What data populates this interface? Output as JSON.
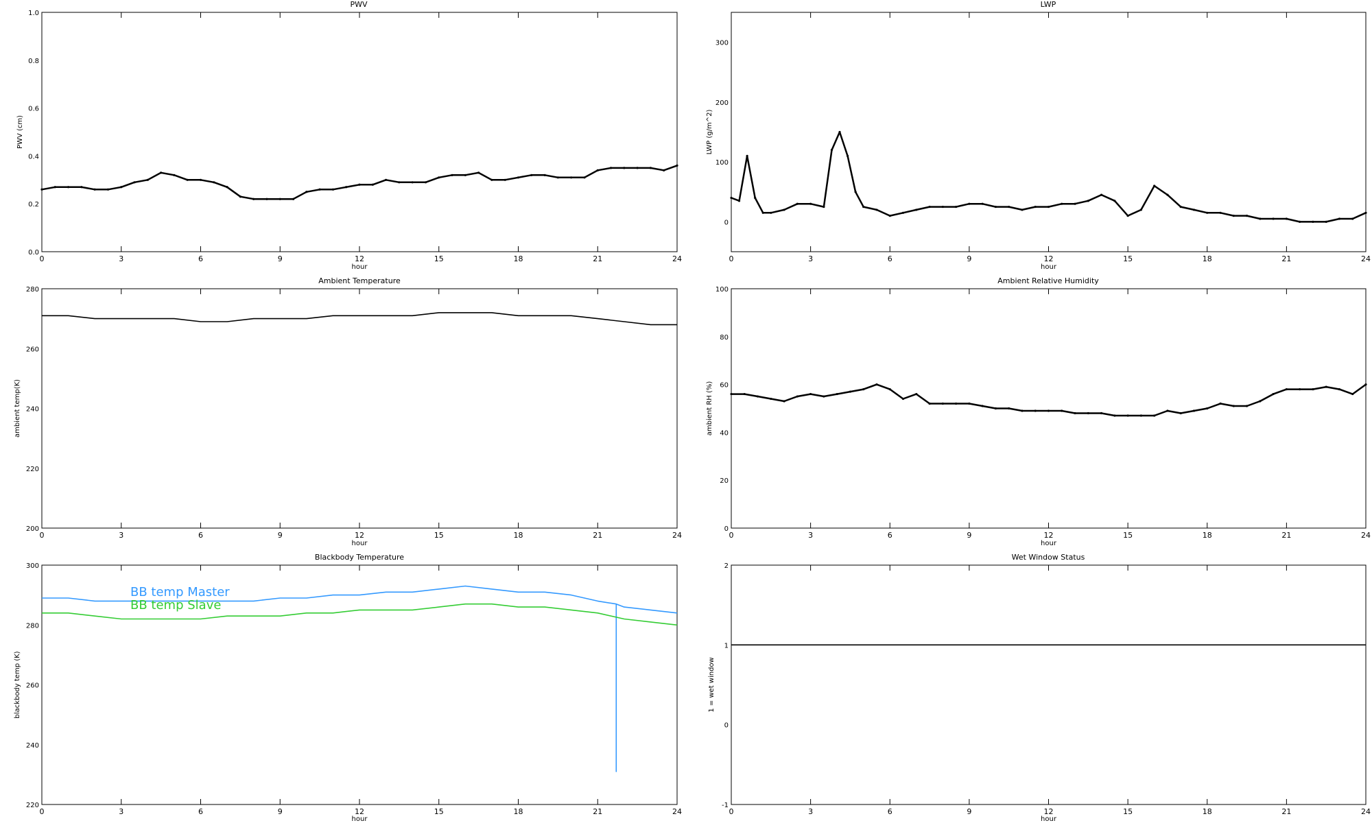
{
  "figure": {
    "panels": [
      {
        "id": "pwv",
        "title": "PWV",
        "xlabel": "hour",
        "ylabel": "PWV (cm)",
        "xticks": [
          "0",
          "3",
          "6",
          "9",
          "12",
          "15",
          "18",
          "21",
          "24"
        ],
        "yticks": [
          "0.0",
          "0.2",
          "0.4",
          "0.6",
          "0.8",
          "1.0"
        ]
      },
      {
        "id": "lwp",
        "title": "LWP",
        "xlabel": "hour",
        "ylabel": "LWP (g/m^2)",
        "xticks": [
          "0",
          "3",
          "6",
          "9",
          "12",
          "15",
          "18",
          "21",
          "24"
        ],
        "yticks": [
          "0",
          "100",
          "200",
          "300"
        ]
      },
      {
        "id": "ambient-temp",
        "title": "Ambient Temperature",
        "xlabel": "hour",
        "ylabel": "ambient temp(K)",
        "xticks": [
          "0",
          "3",
          "6",
          "9",
          "12",
          "15",
          "18",
          "21",
          "24"
        ],
        "yticks": [
          "200",
          "220",
          "240",
          "260",
          "280"
        ]
      },
      {
        "id": "ambient-rh",
        "title": "Ambient Relative Humidity",
        "xlabel": "hour",
        "ylabel": "ambient RH (%)",
        "xticks": [
          "0",
          "3",
          "6",
          "9",
          "12",
          "15",
          "18",
          "21",
          "24"
        ],
        "yticks": [
          "0",
          "20",
          "40",
          "60",
          "80",
          "100"
        ]
      },
      {
        "id": "blackbody-temp",
        "title": "Blackbody Temperature",
        "xlabel": "hour",
        "ylabel": "blackbody temp (K)",
        "xticks": [
          "0",
          "3",
          "6",
          "9",
          "12",
          "15",
          "18",
          "21",
          "24"
        ],
        "yticks": [
          "220",
          "240",
          "260",
          "280",
          "300"
        ],
        "legend": [
          "BB temp Master",
          "BB temp Slave"
        ]
      },
      {
        "id": "wet-window",
        "title": "Wet Window Status",
        "xlabel": "hour",
        "ylabel": "1 = wet window",
        "xticks": [
          "0",
          "3",
          "6",
          "9",
          "12",
          "15",
          "18",
          "21",
          "24"
        ],
        "yticks": [
          "-1",
          "0",
          "1",
          "2"
        ]
      }
    ]
  },
  "chart_data": [
    {
      "type": "scatter",
      "title": "PWV",
      "xlabel": "hour",
      "ylabel": "PWV (cm)",
      "xlim": [
        0,
        24
      ],
      "ylim": [
        0,
        1
      ],
      "series": [
        {
          "x": [
            0,
            0.5,
            1,
            1.5,
            2,
            2.5,
            3,
            3.5,
            4,
            4.5,
            5,
            5.5,
            6,
            6.5,
            7,
            7.5,
            8,
            8.5,
            9,
            9.5,
            10,
            10.5,
            11,
            11.5,
            12,
            12.5,
            13,
            13.5,
            14,
            14.5,
            15,
            15.5,
            16,
            16.5,
            17,
            17.5,
            18,
            18.5,
            19,
            19.5,
            20,
            20.5,
            21,
            21.5,
            22,
            22.5,
            23,
            23.5,
            24
          ],
          "y": [
            0.26,
            0.27,
            0.27,
            0.27,
            0.26,
            0.26,
            0.27,
            0.29,
            0.3,
            0.33,
            0.32,
            0.3,
            0.3,
            0.29,
            0.27,
            0.23,
            0.22,
            0.22,
            0.22,
            0.22,
            0.25,
            0.26,
            0.26,
            0.27,
            0.28,
            0.28,
            0.3,
            0.29,
            0.29,
            0.29,
            0.31,
            0.32,
            0.32,
            0.33,
            0.3,
            0.3,
            0.31,
            0.32,
            0.32,
            0.31,
            0.31,
            0.31,
            0.34,
            0.35,
            0.35,
            0.35,
            0.35,
            0.34,
            0.36
          ]
        }
      ],
      "color": "#000000"
    },
    {
      "type": "scatter",
      "title": "LWP",
      "xlabel": "hour",
      "ylabel": "LWP (g/m^2)",
      "xlim": [
        0,
        24
      ],
      "ylim": [
        -50,
        350
      ],
      "series": [
        {
          "x": [
            0,
            0.3,
            0.6,
            0.9,
            1.2,
            1.5,
            2,
            2.5,
            3,
            3.5,
            3.8,
            4.1,
            4.4,
            4.7,
            5,
            5.5,
            6,
            6.5,
            7,
            7.5,
            8,
            8.5,
            9,
            9.5,
            10,
            10.5,
            11,
            11.5,
            12,
            12.5,
            13,
            13.5,
            14,
            14.5,
            15,
            15.5,
            16,
            16.5,
            17,
            17.5,
            18,
            18.5,
            19,
            19.5,
            20,
            20.5,
            21,
            21.5,
            22,
            22.5,
            23,
            23.5,
            24
          ],
          "y": [
            40,
            35,
            110,
            40,
            15,
            15,
            20,
            30,
            30,
            25,
            120,
            150,
            110,
            50,
            25,
            20,
            10,
            15,
            20,
            25,
            25,
            25,
            30,
            30,
            25,
            25,
            20,
            25,
            25,
            30,
            30,
            35,
            45,
            35,
            10,
            20,
            60,
            45,
            25,
            20,
            15,
            15,
            10,
            10,
            5,
            5,
            5,
            0,
            0,
            0,
            5,
            5,
            15
          ]
        }
      ],
      "color": "#000000"
    },
    {
      "type": "line",
      "title": "Ambient Temperature",
      "xlabel": "hour",
      "ylabel": "ambient temp(K)",
      "xlim": [
        0,
        24
      ],
      "ylim": [
        200,
        280
      ],
      "series": [
        {
          "x": [
            0,
            1,
            2,
            3,
            4,
            5,
            6,
            7,
            8,
            9,
            10,
            11,
            12,
            13,
            14,
            15,
            16,
            17,
            18,
            19,
            20,
            21,
            22,
            23,
            24
          ],
          "y": [
            271,
            271,
            270,
            270,
            270,
            270,
            269,
            269,
            270,
            270,
            270,
            271,
            271,
            271,
            271,
            272,
            272,
            272,
            271,
            271,
            271,
            270,
            269,
            268,
            268
          ]
        }
      ],
      "color": "#000000"
    },
    {
      "type": "scatter",
      "title": "Ambient Relative Humidity",
      "xlabel": "hour",
      "ylabel": "ambient RH (%)",
      "xlim": [
        0,
        24
      ],
      "ylim": [
        0,
        100
      ],
      "series": [
        {
          "x": [
            0,
            0.5,
            1,
            1.5,
            2,
            2.5,
            3,
            3.5,
            4,
            4.5,
            5,
            5.5,
            6,
            6.5,
            7,
            7.5,
            8,
            8.5,
            9,
            9.5,
            10,
            10.5,
            11,
            11.5,
            12,
            12.5,
            13,
            13.5,
            14,
            14.5,
            15,
            15.5,
            16,
            16.5,
            17,
            17.5,
            18,
            18.5,
            19,
            19.5,
            20,
            20.5,
            21,
            21.5,
            22,
            22.5,
            23,
            23.5,
            24
          ],
          "y": [
            56,
            56,
            55,
            54,
            53,
            55,
            56,
            55,
            56,
            57,
            58,
            60,
            58,
            54,
            56,
            52,
            52,
            52,
            52,
            51,
            50,
            50,
            49,
            49,
            49,
            49,
            48,
            48,
            48,
            47,
            47,
            47,
            47,
            49,
            48,
            49,
            50,
            52,
            51,
            51,
            53,
            56,
            58,
            58,
            58,
            59,
            58,
            56,
            60
          ]
        }
      ],
      "color": "#000000"
    },
    {
      "type": "line",
      "title": "Blackbody Temperature",
      "xlabel": "hour",
      "ylabel": "blackbody temp (K)",
      "xlim": [
        0,
        24
      ],
      "ylim": [
        220,
        300
      ],
      "series": [
        {
          "name": "BB temp Master",
          "color": "#3399ff",
          "x": [
            0,
            1,
            2,
            3,
            4,
            5,
            6,
            7,
            8,
            9,
            10,
            11,
            12,
            13,
            14,
            15,
            16,
            17,
            18,
            19,
            20,
            21,
            21.7,
            21.7,
            21.7,
            22,
            23,
            24
          ],
          "y": [
            289,
            289,
            288,
            288,
            288,
            288,
            288,
            288,
            288,
            289,
            289,
            290,
            290,
            291,
            291,
            292,
            293,
            292,
            291,
            291,
            290,
            288,
            287,
            231,
            287,
            286,
            285,
            284
          ]
        },
        {
          "name": "BB temp Slave",
          "color": "#33cc33",
          "x": [
            0,
            1,
            2,
            3,
            4,
            5,
            6,
            7,
            8,
            9,
            10,
            11,
            12,
            13,
            14,
            15,
            16,
            17,
            18,
            19,
            20,
            21,
            22,
            23,
            24
          ],
          "y": [
            284,
            284,
            283,
            282,
            282,
            282,
            282,
            283,
            283,
            283,
            284,
            284,
            285,
            285,
            285,
            286,
            287,
            287,
            286,
            286,
            285,
            284,
            282,
            281,
            280
          ]
        }
      ]
    },
    {
      "type": "line",
      "title": "Wet Window Status",
      "xlabel": "hour",
      "ylabel": "1 = wet window",
      "xlim": [
        0,
        24
      ],
      "ylim": [
        -1,
        2
      ],
      "series": [
        {
          "x": [
            0,
            24
          ],
          "y": [
            1,
            1
          ]
        }
      ],
      "color": "#000000"
    }
  ]
}
